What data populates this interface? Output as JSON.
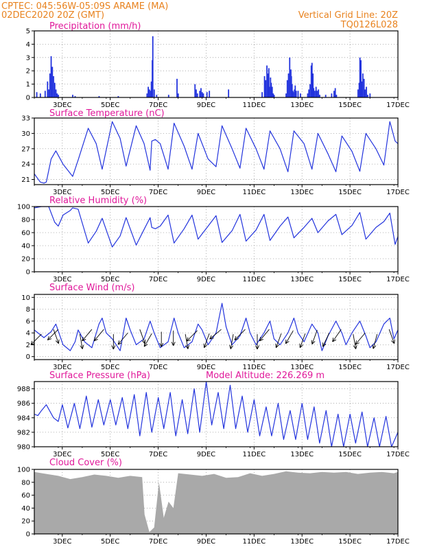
{
  "header": {
    "line1": "CPTEC:   045:56W-05:09S   ARAME (MA)",
    "line2": "02DEC2020 20Z (GMT)",
    "grid_note": "Vertical Grid Line: 20Z",
    "run_id": "TQ0126L028"
  },
  "colors": {
    "header": "#e8821e",
    "title": "#e0189a",
    "series": "#2233dd",
    "cloud": "#a9a9a9"
  },
  "x_axis": {
    "labels": [
      "3DEC",
      "5DEC",
      "7DEC",
      "9DEC",
      "11DEC",
      "13DEC",
      "15DEC",
      "17DEC"
    ],
    "label_days": [
      1.167,
      3.167,
      5.167,
      7.167,
      9.167,
      11.167,
      13.167,
      15.167
    ],
    "range_days": [
      0,
      15.167
    ],
    "note": "x values are days elapsed since the first timestep (02DEC2020 20Z)"
  },
  "chart_data": [
    {
      "type": "bar",
      "title": "Precipitation (mm/h)",
      "ylim": [
        0,
        5
      ],
      "yticks": [
        0,
        1,
        2,
        3,
        4,
        5
      ],
      "events": [
        [
          0.1,
          0.4
        ],
        [
          0.25,
          0.3
        ],
        [
          0.45,
          0.5
        ],
        [
          0.55,
          1.2
        ],
        [
          0.6,
          0.6
        ],
        [
          0.65,
          1.8
        ],
        [
          0.7,
          3.1
        ],
        [
          0.75,
          2.3
        ],
        [
          0.8,
          1.6
        ],
        [
          0.85,
          1.1
        ],
        [
          0.9,
          0.6
        ],
        [
          0.95,
          0.3
        ],
        [
          1.0,
          0.2
        ],
        [
          1.6,
          0.2
        ],
        [
          1.7,
          0.1
        ],
        [
          2.7,
          0.1
        ],
        [
          3.5,
          0.1
        ],
        [
          4.7,
          0.3
        ],
        [
          4.75,
          0.8
        ],
        [
          4.8,
          0.6
        ],
        [
          4.85,
          0.5
        ],
        [
          4.88,
          1.2
        ],
        [
          4.92,
          2.8
        ],
        [
          4.94,
          4.6
        ],
        [
          5.0,
          0.6
        ],
        [
          5.1,
          0.2
        ],
        [
          5.6,
          0.2
        ],
        [
          5.95,
          1.4
        ],
        [
          6.0,
          0.3
        ],
        [
          6.7,
          1.0
        ],
        [
          6.75,
          0.6
        ],
        [
          6.8,
          0.3
        ],
        [
          6.9,
          0.5
        ],
        [
          6.95,
          0.7
        ],
        [
          7.0,
          0.4
        ],
        [
          7.05,
          0.3
        ],
        [
          7.2,
          0.4
        ],
        [
          7.3,
          0.5
        ],
        [
          8.1,
          0.6
        ],
        [
          9.5,
          0.4
        ],
        [
          9.6,
          1.6
        ],
        [
          9.65,
          1.3
        ],
        [
          9.7,
          2.4
        ],
        [
          9.75,
          1.8
        ],
        [
          9.78,
          2.2
        ],
        [
          9.8,
          0.8
        ],
        [
          9.85,
          1.5
        ],
        [
          9.88,
          1.1
        ],
        [
          9.92,
          0.8
        ],
        [
          9.96,
          0.3
        ],
        [
          10.0,
          0.2
        ],
        [
          10.5,
          0.3
        ],
        [
          10.55,
          1.3
        ],
        [
          10.6,
          1.8
        ],
        [
          10.65,
          3.0
        ],
        [
          10.7,
          2.1
        ],
        [
          10.72,
          1.6
        ],
        [
          10.75,
          1.0
        ],
        [
          10.78,
          0.5
        ],
        [
          10.8,
          0.4
        ],
        [
          10.85,
          0.6
        ],
        [
          10.88,
          0.9
        ],
        [
          10.92,
          0.5
        ],
        [
          11.0,
          0.5
        ],
        [
          11.1,
          0.3
        ],
        [
          11.4,
          0.3
        ],
        [
          11.45,
          0.6
        ],
        [
          11.5,
          1.0
        ],
        [
          11.55,
          2.4
        ],
        [
          11.58,
          2.6
        ],
        [
          11.62,
          1.8
        ],
        [
          11.65,
          0.7
        ],
        [
          11.7,
          0.5
        ],
        [
          11.75,
          0.8
        ],
        [
          11.8,
          0.5
        ],
        [
          11.85,
          0.6
        ],
        [
          11.9,
          0.2
        ],
        [
          12.15,
          0.2
        ],
        [
          12.4,
          0.3
        ],
        [
          12.5,
          0.5
        ],
        [
          12.55,
          0.7
        ],
        [
          12.6,
          0.2
        ],
        [
          13.5,
          0.6
        ],
        [
          13.55,
          1.1
        ],
        [
          13.58,
          3.0
        ],
        [
          13.62,
          2.8
        ],
        [
          13.66,
          1.2
        ],
        [
          13.7,
          1.8
        ],
        [
          13.75,
          1.4
        ],
        [
          13.8,
          0.6
        ],
        [
          13.85,
          0.8
        ],
        [
          13.9,
          0.2
        ],
        [
          14.0,
          0.3
        ]
      ]
    },
    {
      "type": "line",
      "title": "Surface Temperature (nC)",
      "ylim": [
        20,
        33
      ],
      "yticks": [
        21,
        24,
        27,
        30,
        33
      ],
      "x": [
        0.0,
        0.25,
        0.4,
        0.5,
        0.7,
        0.9,
        1.2,
        1.5,
        1.6,
        1.83,
        2.25,
        2.58,
        2.83,
        3.25,
        3.58,
        3.83,
        4.25,
        4.58,
        4.83,
        4.9,
        5.05,
        5.25,
        5.58,
        5.83,
        6.25,
        6.58,
        6.83,
        7.25,
        7.58,
        7.83,
        8.25,
        8.58,
        8.83,
        9.25,
        9.58,
        9.83,
        10.25,
        10.58,
        10.83,
        11.25,
        11.58,
        11.83,
        12.25,
        12.58,
        12.83,
        13.25,
        13.58,
        13.83,
        14.25,
        14.58,
        14.83,
        15.05,
        15.167
      ],
      "y": [
        22.1,
        20.5,
        20.3,
        20.5,
        25.0,
        26.6,
        24.0,
        22.2,
        21.6,
        24.8,
        31.0,
        28.0,
        23.0,
        32.3,
        29.0,
        23.6,
        31.5,
        28.0,
        22.8,
        28.5,
        28.8,
        28.0,
        23.0,
        32.0,
        27.5,
        23.0,
        30.0,
        25.0,
        23.5,
        31.5,
        27.0,
        23.2,
        31.0,
        27.0,
        23.0,
        30.5,
        27.0,
        22.5,
        30.5,
        28.0,
        23.0,
        30.0,
        26.0,
        22.5,
        29.5,
        26.5,
        22.6,
        30.0,
        27.0,
        23.8,
        32.3,
        28.5,
        28.0
      ]
    },
    {
      "type": "line",
      "title": "Relative Humidity (%)",
      "ylim": [
        0,
        100
      ],
      "yticks": [
        0,
        20,
        40,
        60,
        80,
        100
      ],
      "x": [
        0.0,
        0.3,
        0.6,
        0.85,
        1.0,
        1.2,
        1.5,
        1.6,
        1.83,
        2.25,
        2.58,
        2.83,
        3.25,
        3.58,
        3.83,
        4.25,
        4.58,
        4.83,
        4.9,
        5.05,
        5.25,
        5.58,
        5.83,
        6.25,
        6.58,
        6.83,
        7.25,
        7.58,
        7.83,
        8.25,
        8.58,
        8.83,
        9.25,
        9.58,
        9.83,
        10.25,
        10.58,
        10.83,
        11.25,
        11.58,
        11.83,
        12.25,
        12.58,
        12.83,
        13.25,
        13.58,
        13.83,
        14.25,
        14.58,
        14.83,
        15.05,
        15.167
      ],
      "y": [
        98.0,
        100.0,
        100.0,
        76.0,
        70.0,
        87.0,
        94.0,
        98.0,
        96.0,
        44.0,
        62.0,
        82.0,
        38.0,
        55.0,
        83.0,
        41.0,
        65.0,
        83.0,
        68.0,
        66.0,
        70.0,
        87.0,
        44.0,
        66.0,
        87.0,
        50.0,
        70.0,
        86.0,
        45.0,
        63.0,
        88.0,
        47.0,
        64.0,
        88.0,
        48.0,
        70.0,
        84.0,
        52.0,
        68.0,
        82.0,
        60.0,
        78.0,
        88.0,
        57.0,
        71.0,
        91.0,
        50.0,
        68.0,
        77.0,
        90.0,
        42.0,
        54.0
      ]
    },
    {
      "type": "line",
      "title": "Surface Wind (m/s)",
      "ylim": [
        -0.5,
        10.5
      ],
      "yticks": [
        0,
        2,
        4,
        6,
        8,
        10
      ],
      "x": [
        0.0,
        0.4,
        0.7,
        0.9,
        1.2,
        1.5,
        1.7,
        1.83,
        2.1,
        2.4,
        2.7,
        2.83,
        3.0,
        3.25,
        3.58,
        3.83,
        4.0,
        4.25,
        4.58,
        4.83,
        5.0,
        5.25,
        5.58,
        5.83,
        6.0,
        6.25,
        6.58,
        6.83,
        7.0,
        7.25,
        7.58,
        7.83,
        8.0,
        8.25,
        8.58,
        8.83,
        9.0,
        9.25,
        9.58,
        9.83,
        10.0,
        10.25,
        10.58,
        10.83,
        11.0,
        11.25,
        11.58,
        11.83,
        12.0,
        12.25,
        12.58,
        12.83,
        13.0,
        13.25,
        13.58,
        13.83,
        14.0,
        14.25,
        14.58,
        14.83,
        15.0,
        15.167
      ],
      "y": [
        4.5,
        3.2,
        4.2,
        5.5,
        2.0,
        1.0,
        2.5,
        4.5,
        2.5,
        1.5,
        5.5,
        6.5,
        4.0,
        3.0,
        1.0,
        6.5,
        4.5,
        2.0,
        3.0,
        6.0,
        4.0,
        1.5,
        2.5,
        6.5,
        4.0,
        1.5,
        2.5,
        5.5,
        4.5,
        2.0,
        4.0,
        9.0,
        5.0,
        2.0,
        3.5,
        6.5,
        4.0,
        2.0,
        4.0,
        6.0,
        3.0,
        2.0,
        4.0,
        6.5,
        4.0,
        2.5,
        5.5,
        4.0,
        1.0,
        3.5,
        6.0,
        4.0,
        2.0,
        4.0,
        6.0,
        3.5,
        1.5,
        2.5,
        5.5,
        6.5,
        3.0,
        4.5
      ],
      "arrows": [
        [
          0.3,
          3.8,
          225
        ],
        [
          0.8,
          4.6,
          290
        ],
        [
          1.0,
          4.6,
          225
        ],
        [
          1.9,
          3.8,
          280
        ],
        [
          2.4,
          4.6,
          230
        ],
        [
          2.9,
          4.6,
          230
        ],
        [
          3.3,
          3.8,
          270
        ],
        [
          3.9,
          4.0,
          230
        ],
        [
          4.4,
          4.6,
          290
        ],
        [
          4.9,
          3.9,
          240
        ],
        [
          5.3,
          4.2,
          270
        ],
        [
          5.8,
          4.4,
          270
        ],
        [
          6.3,
          3.8,
          280
        ],
        [
          6.8,
          4.4,
          225
        ],
        [
          7.3,
          3.9,
          250
        ],
        [
          7.8,
          4.6,
          220
        ],
        [
          8.3,
          3.8,
          260
        ],
        [
          8.8,
          4.6,
          225
        ],
        [
          9.3,
          3.8,
          270
        ],
        [
          9.8,
          4.6,
          230
        ],
        [
          10.3,
          3.9,
          250
        ],
        [
          10.8,
          4.4,
          240
        ],
        [
          11.3,
          3.9,
          250
        ],
        [
          11.8,
          4.5,
          250
        ],
        [
          12.3,
          4.0,
          245
        ],
        [
          12.8,
          4.6,
          235
        ],
        [
          13.3,
          3.8,
          280
        ],
        [
          13.8,
          4.0,
          230
        ],
        [
          14.3,
          3.8,
          255
        ],
        [
          14.8,
          4.6,
          290
        ]
      ]
    },
    {
      "type": "line",
      "title": "Surface Pressure (hPa)",
      "annotation": "Model Altitude: 226.269 m",
      "ylim": [
        980,
        989
      ],
      "yticks": [
        980,
        982,
        984,
        986,
        988
      ],
      "x": [
        0.0,
        0.15,
        0.3,
        0.5,
        0.8,
        1.0,
        1.17,
        1.4,
        1.67,
        1.9,
        2.17,
        2.4,
        2.67,
        2.9,
        3.17,
        3.4,
        3.67,
        3.9,
        4.17,
        4.4,
        4.67,
        4.9,
        5.17,
        5.4,
        5.67,
        5.9,
        6.17,
        6.4,
        6.67,
        6.9,
        7.17,
        7.4,
        7.67,
        7.9,
        8.17,
        8.4,
        8.67,
        8.9,
        9.17,
        9.4,
        9.67,
        9.9,
        10.17,
        10.4,
        10.67,
        10.9,
        11.17,
        11.4,
        11.67,
        11.9,
        12.17,
        12.4,
        12.67,
        12.9,
        13.17,
        13.4,
        13.67,
        13.9,
        14.17,
        14.4,
        14.67,
        14.9,
        15.167
      ],
      "y": [
        984.5,
        984.3,
        985.0,
        985.8,
        984.0,
        983.5,
        985.8,
        982.6,
        986.0,
        982.5,
        987.0,
        982.7,
        986.5,
        983.0,
        986.5,
        983.0,
        986.8,
        982.5,
        987.2,
        981.5,
        987.5,
        982.0,
        986.8,
        982.5,
        987.5,
        981.5,
        986.5,
        981.8,
        988.0,
        982.0,
        989.0,
        983.0,
        987.5,
        982.5,
        988.5,
        982.5,
        987.0,
        982.0,
        986.5,
        981.5,
        985.5,
        981.5,
        986.0,
        981.0,
        985.0,
        981.0,
        986.0,
        981.0,
        985.5,
        980.5,
        985.0,
        980.0,
        984.5,
        980.0,
        984.5,
        980.5,
        984.8,
        980.0,
        984.0,
        980.0,
        984.2,
        980.0,
        982.0
      ]
    },
    {
      "type": "area",
      "title": "Cloud Cover (%)",
      "ylim": [
        0,
        100
      ],
      "yticks": [
        0,
        20,
        40,
        60,
        80,
        100
      ],
      "x": [
        0.0,
        0.5,
        1.0,
        1.5,
        2.0,
        2.5,
        3.0,
        3.5,
        4.0,
        4.5,
        4.6,
        4.8,
        5.0,
        5.2,
        5.4,
        5.6,
        5.8,
        6.0,
        6.5,
        7.0,
        7.5,
        8.0,
        8.5,
        9.0,
        9.5,
        10.0,
        10.5,
        11.0,
        11.5,
        12.0,
        12.5,
        13.0,
        13.5,
        14.0,
        14.5,
        15.0,
        15.167
      ],
      "y": [
        96,
        93,
        90,
        85,
        88,
        92,
        90,
        87,
        90,
        88,
        30,
        3,
        10,
        80,
        25,
        50,
        40,
        94,
        92,
        90,
        93,
        87,
        88,
        94,
        90,
        93,
        97,
        95,
        94,
        96,
        95,
        96,
        93,
        95,
        96,
        94,
        96
      ]
    }
  ]
}
